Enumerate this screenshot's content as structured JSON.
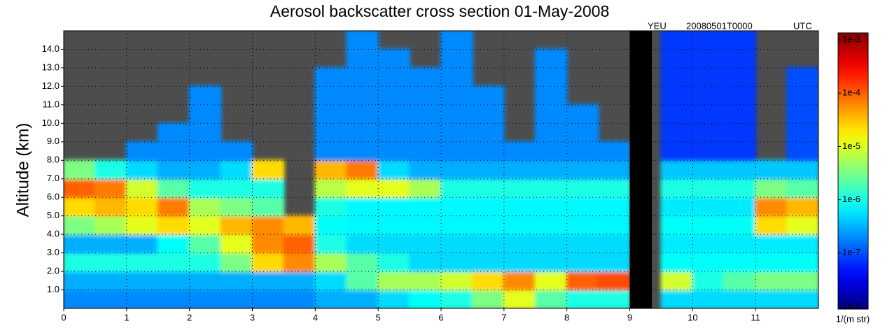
{
  "chart_data": {
    "type": "heatmap",
    "title": "Aerosol backscatter cross section  01-May-2008",
    "annotations": [
      "YEU",
      "20080501T0000",
      "UTC"
    ],
    "y_label": "Altitude (km)",
    "colorbar_label": "1/(m str)",
    "x": [
      0.25,
      0.75,
      1.25,
      1.75,
      2.25,
      2.75,
      3.25,
      3.75,
      4.25,
      4.75,
      5.25,
      5.75,
      6.25,
      6.75,
      7.25,
      7.75,
      8.25,
      8.75,
      9.25,
      9.75,
      10.25,
      10.75,
      11.25,
      11.75
    ],
    "y": [
      0.5,
      1.5,
      2.5,
      3.5,
      4.5,
      5.5,
      6.5,
      7.5,
      8.5,
      9.5,
      10.5,
      11.5,
      12.5,
      13.5,
      14.5
    ],
    "values": [
      [
        2e-07,
        2e-07,
        2e-07,
        2e-07,
        2e-07,
        2e-07,
        2e-07,
        2e-07,
        3e-07,
        3e-07,
        5e-07,
        8e-07,
        1e-06,
        3e-06,
        1e-05,
        2e-06,
        1e-06,
        1e-06,
        null,
        5e-07,
        5e-07,
        5e-07,
        5e-07,
        5e-07
      ],
      [
        3e-07,
        3e-07,
        3e-07,
        3e-07,
        3e-07,
        3e-07,
        3e-07,
        3e-07,
        5e-07,
        2e-06,
        5e-06,
        5e-06,
        8e-06,
        2e-05,
        5e-05,
        1e-05,
        8e-05,
        0.0001,
        null,
        8e-06,
        1e-06,
        2e-06,
        3e-06,
        3e-06
      ],
      [
        1e-06,
        1e-06,
        1e-06,
        1e-06,
        1e-06,
        3e-06,
        2e-05,
        5e-05,
        5e-06,
        2e-06,
        1e-06,
        5e-07,
        5e-07,
        5e-07,
        5e-07,
        5e-07,
        5e-07,
        5e-07,
        null,
        8e-07,
        8e-07,
        8e-07,
        8e-07,
        8e-07
      ],
      [
        3e-07,
        3e-07,
        3e-07,
        8e-07,
        2e-06,
        1e-05,
        5e-05,
        8e-05,
        1e-06,
        5e-07,
        5e-07,
        5e-07,
        5e-07,
        5e-07,
        5e-07,
        5e-07,
        5e-07,
        5e-07,
        null,
        6e-07,
        6e-07,
        6e-07,
        6e-07,
        6e-07
      ],
      [
        3e-06,
        5e-06,
        1e-05,
        2e-05,
        1e-05,
        3e-05,
        5e-05,
        3e-05,
        8e-07,
        7e-07,
        7e-07,
        7e-07,
        7e-07,
        7e-07,
        7e-07,
        7e-07,
        7e-07,
        7e-07,
        null,
        8e-07,
        8e-07,
        8e-07,
        2e-05,
        1e-05
      ],
      [
        2e-05,
        3e-05,
        2e-05,
        6e-05,
        5e-06,
        3e-06,
        2e-06,
        null,
        1e-06,
        7e-07,
        7e-07,
        7e-07,
        7e-07,
        7e-07,
        7e-07,
        7e-07,
        7e-07,
        7e-07,
        null,
        6e-07,
        6e-07,
        6e-07,
        5e-05,
        3e-05
      ],
      [
        8e-05,
        6e-05,
        8e-06,
        2e-06,
        1e-06,
        1e-06,
        1e-06,
        null,
        6e-06,
        1e-05,
        1e-05,
        5e-06,
        1e-06,
        1e-06,
        1e-06,
        1e-06,
        1e-06,
        1e-06,
        null,
        1e-06,
        1e-06,
        1e-06,
        3e-06,
        2e-06
      ],
      [
        3e-06,
        1e-06,
        5e-07,
        3e-07,
        3e-07,
        5e-07,
        2e-05,
        null,
        3e-05,
        6e-05,
        5e-07,
        3e-07,
        3e-07,
        3e-07,
        3e-07,
        3e-07,
        3e-07,
        3e-07,
        null,
        4e-07,
        4e-07,
        4e-07,
        4e-07,
        4e-07
      ],
      [
        null,
        null,
        2e-07,
        2e-07,
        2e-07,
        2e-07,
        null,
        null,
        2e-07,
        2e-07,
        2e-07,
        2e-07,
        2e-07,
        2e-07,
        2e-07,
        2e-07,
        2e-07,
        2e-07,
        null,
        8e-08,
        8e-08,
        8e-08,
        null,
        1e-07
      ],
      [
        null,
        null,
        null,
        2e-07,
        2e-07,
        null,
        null,
        null,
        2e-07,
        2e-07,
        2e-07,
        2e-07,
        2e-07,
        2e-07,
        null,
        2e-07,
        2e-07,
        null,
        null,
        8e-08,
        8e-08,
        8e-08,
        null,
        1e-07
      ],
      [
        null,
        null,
        null,
        null,
        2e-07,
        null,
        null,
        null,
        2e-07,
        2e-07,
        2e-07,
        2e-07,
        2e-07,
        2e-07,
        null,
        2e-07,
        2e-07,
        null,
        null,
        8e-08,
        8e-08,
        8e-08,
        null,
        1e-07
      ],
      [
        null,
        null,
        null,
        null,
        2e-07,
        null,
        null,
        null,
        2e-07,
        2e-07,
        2e-07,
        2e-07,
        2e-07,
        2e-07,
        null,
        2e-07,
        null,
        null,
        null,
        8e-08,
        8e-08,
        8e-08,
        null,
        1e-07
      ],
      [
        null,
        null,
        null,
        null,
        null,
        null,
        null,
        null,
        2e-07,
        2e-07,
        2e-07,
        2e-07,
        2e-07,
        null,
        null,
        2e-07,
        null,
        null,
        null,
        8e-08,
        8e-08,
        8e-08,
        null,
        1e-07
      ],
      [
        null,
        null,
        null,
        null,
        null,
        null,
        null,
        null,
        null,
        2e-07,
        2e-07,
        null,
        2e-07,
        null,
        null,
        2e-07,
        null,
        null,
        null,
        8e-08,
        8e-08,
        8e-08,
        null,
        null
      ],
      [
        null,
        null,
        null,
        null,
        null,
        null,
        null,
        null,
        null,
        2e-07,
        null,
        null,
        2e-07,
        null,
        null,
        null,
        null,
        null,
        null,
        8e-08,
        8e-08,
        8e-08,
        null,
        null
      ]
    ],
    "gap": [
      9.0,
      9.35
    ],
    "gap_color": "#000000",
    "no_data_color": "#4d4d4d",
    "colormap": "jet",
    "xlim": [
      0,
      12
    ],
    "xticks": [
      0,
      1,
      2,
      3,
      4,
      5,
      6,
      7,
      8,
      9,
      10,
      11
    ],
    "ylim": [
      0,
      15
    ],
    "yticks": [
      {
        "value": 1,
        "label": "1.0"
      },
      {
        "value": 2,
        "label": "2.0"
      },
      {
        "value": 3,
        "label": "3.0"
      },
      {
        "value": 4,
        "label": "4.0"
      },
      {
        "value": 5,
        "label": "5.0"
      },
      {
        "value": 6,
        "label": "6.0"
      },
      {
        "value": 7,
        "label": "7.0"
      },
      {
        "value": 8,
        "label": "8.0"
      },
      {
        "value": 9,
        "label": "9.0"
      },
      {
        "value": 10,
        "label": "10.0"
      },
      {
        "value": 11,
        "label": "11.0"
      },
      {
        "value": 12,
        "label": "12.0"
      },
      {
        "value": 13,
        "label": "13.0"
      },
      {
        "value": 14,
        "label": "14.0"
      }
    ],
    "clim": [
      1e-08,
      0.001
    ],
    "clog": true,
    "cticks": [
      {
        "value": 0.001,
        "label": "1e-3"
      },
      {
        "value": 0.0001,
        "label": "1e-4"
      },
      {
        "value": 1e-05,
        "label": "1e-5"
      },
      {
        "value": 1e-06,
        "label": "1e-6"
      },
      {
        "value": 1e-07,
        "label": "1e-7"
      },
      {
        "value": 1e-08,
        "label": "1e-8"
      }
    ],
    "grid": true
  }
}
